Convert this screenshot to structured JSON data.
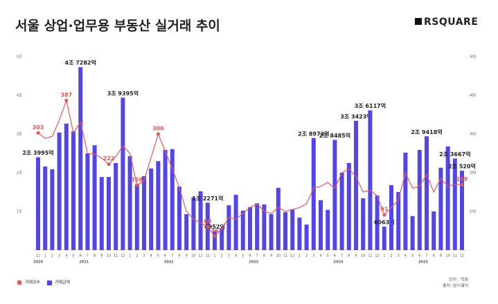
{
  "chart_data": {
    "type": "bar-line",
    "title": "서울 상업·업무용 부동산 실거래 추이",
    "brand": "RSQUARE",
    "unit_note": "단위 : 억원",
    "source_note": "출처: 알스퀘어",
    "categories": [
      "12",
      "1",
      "2",
      "3",
      "4",
      "5",
      "6",
      "7",
      "8",
      "9",
      "10",
      "11",
      "12",
      "1",
      "2",
      "3",
      "4",
      "5",
      "6",
      "7",
      "8",
      "9",
      "10",
      "11",
      "12",
      "1",
      "2",
      "3",
      "4",
      "5",
      "6",
      "7",
      "8",
      "9",
      "10",
      "11",
      "12",
      "1",
      "2",
      "3",
      "4",
      "5",
      "6",
      "7",
      "8",
      "9",
      "10",
      "11",
      "12",
      "1",
      "2",
      "3",
      "4",
      "5",
      "6",
      "7",
      "8",
      "9",
      "10",
      "11",
      "12"
    ],
    "years": [
      "2020",
      "2021",
      "2022",
      "2023",
      "2024",
      "2025"
    ],
    "ylim": [
      0,
      50000
    ],
    "yticks": [
      {
        "value": 10000,
        "label": "1조"
      },
      {
        "value": 20000,
        "label": "2조"
      },
      {
        "value": 30000,
        "label": "3조"
      },
      {
        "value": 40000,
        "label": "4조"
      },
      {
        "value": 50000,
        "label": "5조"
      }
    ],
    "y2lim": [
      0,
      500
    ],
    "y2ticks": [
      100,
      200,
      300,
      400,
      500
    ],
    "series": [
      {
        "name": "거래금액",
        "type": "bar",
        "color": "#5246e8",
        "values": [
          23995,
          21600,
          20900,
          30400,
          32700,
          30700,
          47282,
          25000,
          27100,
          18900,
          18900,
          22500,
          39395,
          24300,
          17000,
          19100,
          21100,
          23000,
          25900,
          26100,
          16400,
          9300,
          13600,
          15200,
          12271,
          4952,
          5700,
          11600,
          14300,
          10200,
          11100,
          12100,
          11800,
          9300,
          16100,
          9800,
          10500,
          8400,
          6600,
          28973,
          12900,
          10400,
          28485,
          20000,
          22500,
          33423,
          13400,
          36117,
          14100,
          6063,
          16800,
          15000,
          25200,
          8800,
          25900,
          29418,
          10000,
          21300,
          26800,
          23667,
          20520
        ],
        "value_labels": [
          "2조 3995억",
          null,
          null,
          null,
          null,
          null,
          "4조 7282억",
          null,
          null,
          null,
          null,
          null,
          "3조 9395억",
          null,
          null,
          null,
          null,
          null,
          null,
          null,
          null,
          null,
          null,
          null,
          "1조 2271억",
          "4952억",
          null,
          null,
          null,
          null,
          null,
          null,
          null,
          null,
          null,
          null,
          null,
          null,
          null,
          "2조 8973억",
          null,
          null,
          "2조 8485억",
          null,
          null,
          "3조 3423억",
          null,
          "3조 6117억",
          null,
          "6063억",
          null,
          null,
          null,
          null,
          null,
          "2조 9418억",
          null,
          null,
          null,
          "2조 3667억",
          "2조 520억"
        ]
      },
      {
        "name": "거래건수",
        "type": "line",
        "axis": "y2",
        "color": "#f05555",
        "values": [
          303,
          289,
          294,
          336,
          387,
          303,
          331,
          250,
          248,
          238,
          222,
          242,
          270,
          250,
          168,
          180,
          240,
          300,
          255,
          210,
          160,
          100,
          80,
          70,
          60,
          36,
          55,
          85,
          80,
          95,
          110,
          120,
          100,
          95,
          110,
          100,
          105,
          110,
          120,
          160,
          165,
          175,
          160,
          200,
          210,
          190,
          150,
          155,
          140,
          91,
          110,
          130,
          200,
          160,
          165,
          195,
          150,
          185,
          165,
          170,
          169
        ],
        "value_labels": [
          "303",
          null,
          null,
          null,
          "387",
          null,
          null,
          null,
          null,
          null,
          "222",
          null,
          null,
          null,
          "168",
          null,
          null,
          "300",
          null,
          null,
          null,
          null,
          null,
          null,
          "60",
          "36",
          null,
          null,
          null,
          null,
          null,
          null,
          null,
          null,
          null,
          null,
          null,
          null,
          null,
          null,
          null,
          null,
          null,
          null,
          null,
          null,
          null,
          null,
          null,
          "91",
          null,
          null,
          null,
          null,
          null,
          null,
          null,
          null,
          null,
          null,
          "169"
        ]
      }
    ]
  }
}
